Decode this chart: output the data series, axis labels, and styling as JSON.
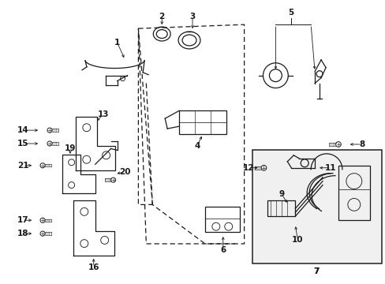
{
  "background_color": "#ffffff",
  "line_color": "#1a1a1a",
  "font_size": 7.5,
  "fig_w": 4.89,
  "fig_h": 3.6,
  "dpi": 100
}
